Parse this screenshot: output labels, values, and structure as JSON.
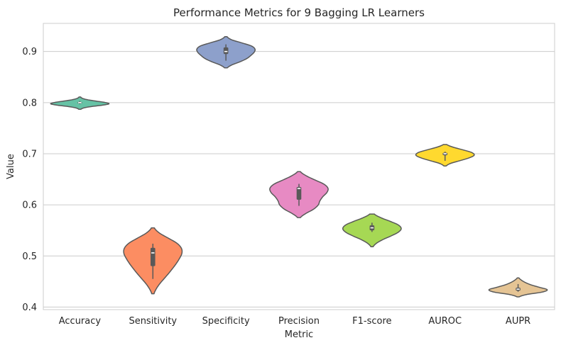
{
  "chart_data": {
    "type": "violin",
    "title": "Performance Metrics for 9 Bagging LR Learners",
    "xlabel": "Metric",
    "ylabel": "Value",
    "ylim": [
      0.395,
      0.955
    ],
    "yticks": [
      0.4,
      0.5,
      0.6,
      0.7,
      0.8,
      0.9
    ],
    "ytick_labels": [
      "0.4",
      "0.5",
      "0.6",
      "0.7",
      "0.8",
      "0.9"
    ],
    "grid": true,
    "grid_axis": "y",
    "categories": [
      "Accuracy",
      "Sensitivity",
      "Specificity",
      "Precision",
      "F1-score",
      "AUROC",
      "AUPR"
    ],
    "palette": [
      "#66c2a5",
      "#fc8d62",
      "#8da0cb",
      "#e78ac3",
      "#a6d854",
      "#ffd92f",
      "#e5c494"
    ],
    "series": [
      {
        "category": "Accuracy",
        "min": 0.797,
        "q1": 0.799,
        "median": 0.8,
        "q3": 0.801,
        "max": 0.803,
        "kde_range": [
          0.787,
          0.811
        ],
        "density": [
          0.04,
          0.14,
          0.4,
          0.78,
          1.0,
          0.86,
          0.55,
          0.26,
          0.09,
          0.03
        ]
      },
      {
        "category": "Sensitivity",
        "min": 0.455,
        "q1": 0.48,
        "median": 0.506,
        "q3": 0.516,
        "max": 0.524,
        "kde_range": [
          0.426,
          0.555
        ],
        "density": [
          0.04,
          0.12,
          0.24,
          0.39,
          0.54,
          0.68,
          0.81,
          0.92,
          1.0,
          0.98,
          0.82,
          0.52,
          0.22,
          0.05
        ]
      },
      {
        "category": "Specificity",
        "min": 0.882,
        "q1": 0.895,
        "median": 0.9,
        "q3": 0.908,
        "max": 0.914,
        "kde_range": [
          0.868,
          0.929
        ],
        "density": [
          0.05,
          0.22,
          0.5,
          0.72,
          0.86,
          0.97,
          1.0,
          0.88,
          0.55,
          0.2,
          0.04
        ]
      },
      {
        "category": "Precision",
        "min": 0.598,
        "q1": 0.61,
        "median": 0.632,
        "q3": 0.635,
        "max": 0.641,
        "kde_range": [
          0.575,
          0.665
        ],
        "density": [
          0.05,
          0.24,
          0.5,
          0.66,
          0.72,
          0.82,
          0.96,
          1.0,
          0.86,
          0.55,
          0.25,
          0.05
        ]
      },
      {
        "category": "F1-score",
        "min": 0.547,
        "q1": 0.55,
        "median": 0.555,
        "q3": 0.56,
        "max": 0.565,
        "kde_range": [
          0.518,
          0.582
        ],
        "density": [
          0.04,
          0.16,
          0.38,
          0.66,
          0.9,
          1.0,
          0.9,
          0.62,
          0.3,
          0.08
        ]
      },
      {
        "category": "AUROC",
        "min": 0.686,
        "q1": 0.697,
        "median": 0.7,
        "q3": 0.702,
        "max": 0.704,
        "kde_range": [
          0.676,
          0.718
        ],
        "density": [
          0.04,
          0.2,
          0.52,
          0.82,
          1.0,
          0.92,
          0.62,
          0.28,
          0.06
        ]
      },
      {
        "category": "AUPR",
        "min": 0.43,
        "q1": 0.432,
        "median": 0.435,
        "q3": 0.438,
        "max": 0.445,
        "kde_range": [
          0.42,
          0.457
        ],
        "density": [
          0.04,
          0.3,
          0.82,
          1.0,
          0.74,
          0.46,
          0.26,
          0.12,
          0.03
        ]
      }
    ]
  }
}
